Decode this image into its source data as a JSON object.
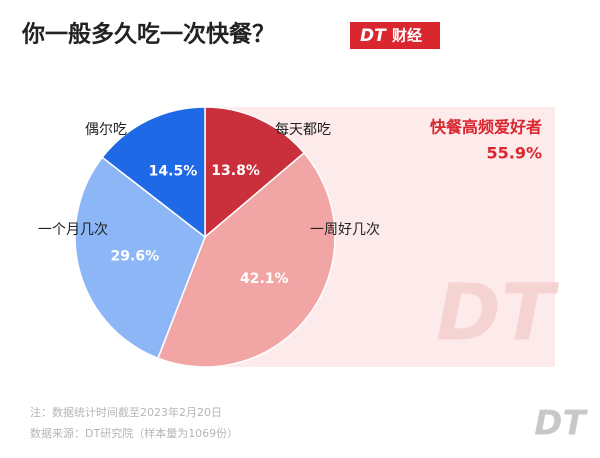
{
  "chart_data": {
    "type": "pie",
    "title": "你一般多久吃一次快餐？",
    "brand": "DT",
    "badge": "财经",
    "categories": [
      "每天都吃",
      "一周好几次",
      "一个月几次",
      "偶尔吃"
    ],
    "values": [
      13.8,
      42.1,
      29.6,
      14.5
    ],
    "value_labels": [
      "13.8%",
      "42.1%",
      "29.6%",
      "14.5%"
    ],
    "colors": [
      "#c9303b",
      "#f2a5a5",
      "#8db6f7",
      "#1f68e6"
    ],
    "annotation": {
      "text": "快餐高频爱好者",
      "value": 55.9,
      "label": "55.9%"
    },
    "notes": [
      "注：数据统计时间截至2023年2月20日",
      "数据来源：DT研究院（样本量为1069份）"
    ]
  }
}
